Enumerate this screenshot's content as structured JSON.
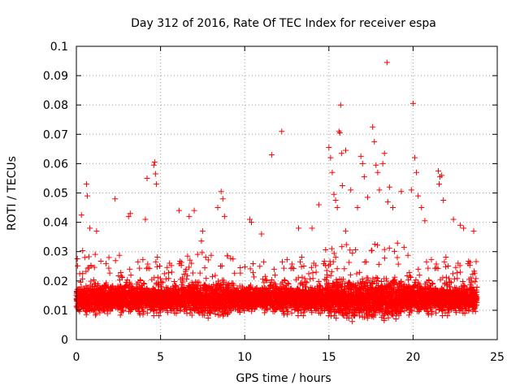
{
  "chart_data": {
    "type": "scatter",
    "title": "Day 312 of 2016, Rate Of TEC Index for receiver espa",
    "xlabel": "GPS time / hours",
    "ylabel": "ROTI / TECUs",
    "xlim": [
      0,
      25
    ],
    "ylim": [
      0,
      0.1
    ],
    "x_ticks": [
      0,
      5,
      10,
      15,
      20,
      25
    ],
    "x_tick_labels": [
      "0",
      "5",
      "10",
      "15",
      "20",
      "25"
    ],
    "y_ticks": [
      0,
      0.01,
      0.02,
      0.03,
      0.04,
      0.05,
      0.06,
      0.07,
      0.08,
      0.09,
      0.1
    ],
    "y_tick_labels": [
      "0",
      "0.01",
      "0.02",
      "0.03",
      "0.04",
      "0.05",
      "0.06",
      "0.07",
      "0.08",
      "0.09",
      "0.1"
    ],
    "grid": true,
    "marker": "+",
    "color": "#ff0000",
    "data_x_range": [
      0,
      23.8
    ],
    "sample_interval_hours": 0.0083,
    "series": [
      {
        "name": "ROTI",
        "points": [
          [
            0.3,
            0.0425
          ],
          [
            0.6,
            0.053
          ],
          [
            0.65,
            0.049
          ],
          [
            0.8,
            0.038
          ],
          [
            1.2,
            0.037
          ],
          [
            2.3,
            0.048
          ],
          [
            3.1,
            0.042
          ],
          [
            3.2,
            0.043
          ],
          [
            4.1,
            0.041
          ],
          [
            4.2,
            0.055
          ],
          [
            4.6,
            0.0595
          ],
          [
            4.65,
            0.0605
          ],
          [
            4.7,
            0.0565
          ],
          [
            4.75,
            0.053
          ],
          [
            6.1,
            0.044
          ],
          [
            6.7,
            0.042
          ],
          [
            7.0,
            0.044
          ],
          [
            7.5,
            0.037
          ],
          [
            8.6,
            0.0505
          ],
          [
            8.7,
            0.048
          ],
          [
            8.4,
            0.045
          ],
          [
            8.8,
            0.042
          ],
          [
            10.3,
            0.041
          ],
          [
            10.4,
            0.04
          ],
          [
            11.0,
            0.036
          ],
          [
            11.6,
            0.063
          ],
          [
            12.2,
            0.071
          ],
          [
            13.2,
            0.038
          ],
          [
            14.0,
            0.038
          ],
          [
            14.4,
            0.046
          ],
          [
            15.0,
            0.0655
          ],
          [
            15.1,
            0.062
          ],
          [
            15.2,
            0.057
          ],
          [
            15.3,
            0.0495
          ],
          [
            15.4,
            0.0475
          ],
          [
            15.5,
            0.045
          ],
          [
            15.6,
            0.071
          ],
          [
            15.65,
            0.0705
          ],
          [
            15.7,
            0.08
          ],
          [
            15.75,
            0.0635
          ],
          [
            15.8,
            0.0525
          ],
          [
            16.0,
            0.0645
          ],
          [
            16.3,
            0.051
          ],
          [
            16.7,
            0.045
          ],
          [
            16.9,
            0.0625
          ],
          [
            17.0,
            0.06
          ],
          [
            17.1,
            0.0555
          ],
          [
            17.3,
            0.0485
          ],
          [
            17.6,
            0.0725
          ],
          [
            17.7,
            0.0675
          ],
          [
            17.8,
            0.0595
          ],
          [
            17.9,
            0.057
          ],
          [
            18.0,
            0.051
          ],
          [
            18.2,
            0.06
          ],
          [
            18.3,
            0.0635
          ],
          [
            18.45,
            0.0945
          ],
          [
            18.5,
            0.047
          ],
          [
            18.6,
            0.052
          ],
          [
            18.8,
            0.045
          ],
          [
            19.3,
            0.0505
          ],
          [
            19.9,
            0.051
          ],
          [
            20.0,
            0.0805
          ],
          [
            20.1,
            0.062
          ],
          [
            20.2,
            0.057
          ],
          [
            20.3,
            0.049
          ],
          [
            20.5,
            0.045
          ],
          [
            20.7,
            0.0405
          ],
          [
            21.5,
            0.0575
          ],
          [
            21.6,
            0.0555
          ],
          [
            21.7,
            0.056
          ],
          [
            21.8,
            0.0475
          ],
          [
            21.55,
            0.053
          ],
          [
            22.4,
            0.041
          ],
          [
            22.8,
            0.039
          ],
          [
            23.0,
            0.038
          ],
          [
            23.6,
            0.037
          ]
        ]
      }
    ]
  }
}
